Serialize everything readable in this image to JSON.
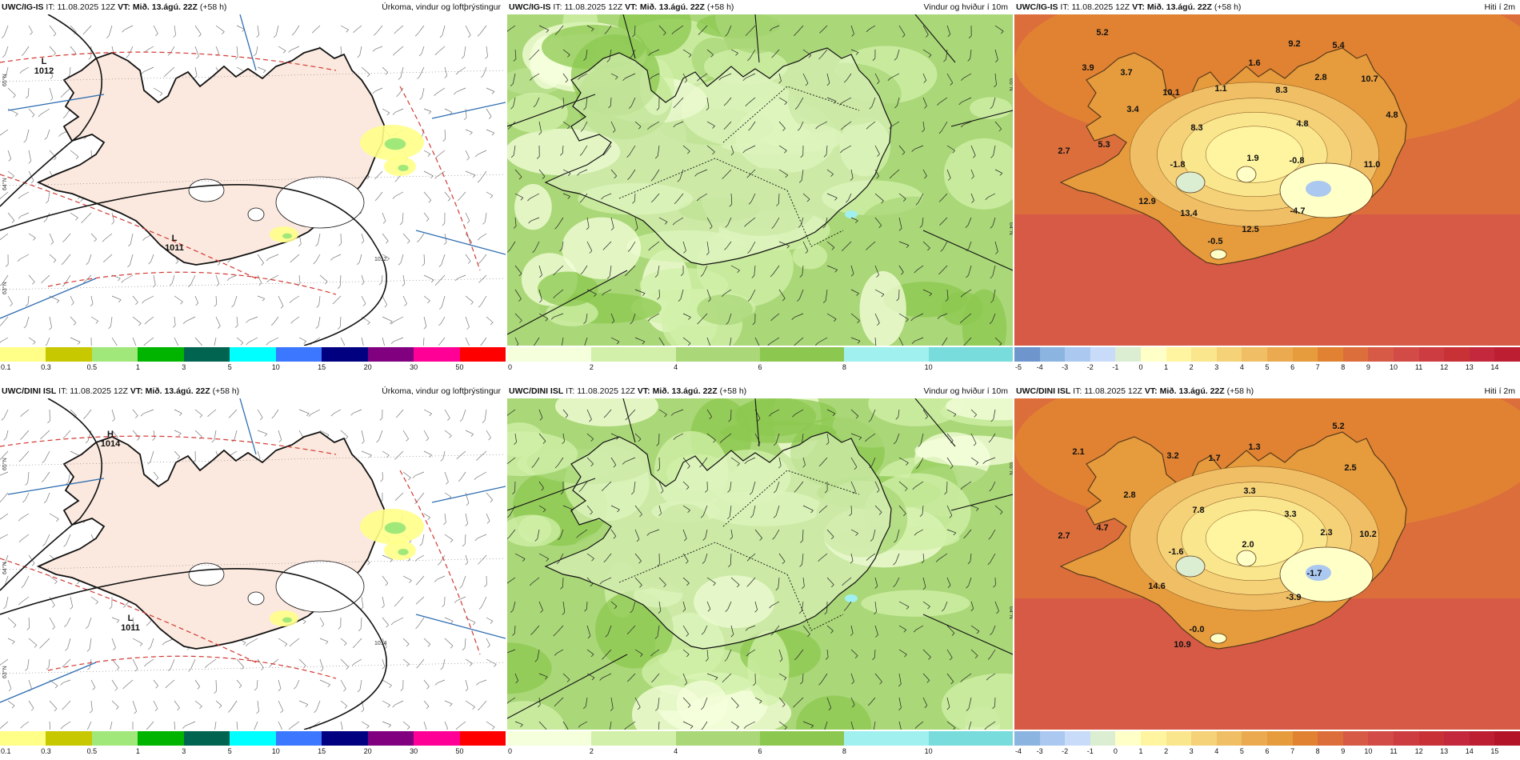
{
  "colors": {
    "land": "#fbe9df",
    "sea": "#ffffff",
    "coast": "#111111",
    "isobar": "#111111",
    "red_dash": "#d23a32",
    "meridian": "#2e6db0"
  },
  "panels": [
    {
      "id": "p1",
      "model": "UWC/IG-IS",
      "it_label": "IT:",
      "it": "11.08.2025 12Z",
      "vt_label": "VT:",
      "vt": "Mið. 13.ágú. 22Z",
      "lead": "(+58 h)",
      "title": "Úrkoma, vindur og loftþrýstingur",
      "type": "precip",
      "labels": [
        {
          "text": "L",
          "sub": "1012",
          "x": 55,
          "y": 62
        },
        {
          "text": "L",
          "sub": "1011",
          "x": 218,
          "y": 283
        }
      ],
      "isobar_labels": [
        "1012"
      ],
      "lat_labels": [
        "65°N",
        "64°N",
        "63°N"
      ]
    },
    {
      "id": "p2",
      "model": "UWC/IG-IS",
      "it_label": "IT:",
      "it": "11.08.2025 12Z",
      "vt_label": "VT:",
      "vt": "Mið. 13.ágú. 22Z",
      "lead": "(+58 h)",
      "title": "Vindur og hviður í 10m",
      "type": "wind",
      "lat_labels": [
        "65°N",
        "64°N"
      ]
    },
    {
      "id": "p3",
      "model": "UWC/IG-IS",
      "it_label": "IT:",
      "it": "11.08.2025 12Z",
      "vt_label": "VT:",
      "vt": "Mið. 13.ágú. 22Z",
      "lead": "(+58 h)",
      "title": "Hiti í 2m",
      "type": "temp",
      "labels": [
        {
          "text": "5.2",
          "x": 110,
          "y": 26
        },
        {
          "text": "9.2",
          "x": 350,
          "y": 40
        },
        {
          "text": "5.4",
          "x": 405,
          "y": 42
        },
        {
          "text": "3.9",
          "x": 92,
          "y": 70
        },
        {
          "text": "3.7",
          "x": 140,
          "y": 76
        },
        {
          "text": "1.6",
          "x": 300,
          "y": 64
        },
        {
          "text": "2.8",
          "x": 383,
          "y": 82
        },
        {
          "text": "10.7",
          "x": 444,
          "y": 84
        },
        {
          "text": "10.1",
          "x": 196,
          "y": 101
        },
        {
          "text": "1.1",
          "x": 258,
          "y": 96
        },
        {
          "text": "8.3",
          "x": 334,
          "y": 98
        },
        {
          "text": "3.4",
          "x": 148,
          "y": 122
        },
        {
          "text": "4.8",
          "x": 472,
          "y": 129
        },
        {
          "text": "4.8",
          "x": 360,
          "y": 140
        },
        {
          "text": "8.3",
          "x": 228,
          "y": 145
        },
        {
          "text": "5.3",
          "x": 112,
          "y": 166
        },
        {
          "text": "2.7",
          "x": 62,
          "y": 174
        },
        {
          "text": "-1.8",
          "x": 204,
          "y": 191
        },
        {
          "text": "1.9",
          "x": 298,
          "y": 183
        },
        {
          "text": "-0.8",
          "x": 353,
          "y": 186
        },
        {
          "text": "11.0",
          "x": 447,
          "y": 191
        },
        {
          "text": "12.9",
          "x": 166,
          "y": 237
        },
        {
          "text": "13.4",
          "x": 218,
          "y": 252
        },
        {
          "text": "-4.7",
          "x": 354,
          "y": 249
        },
        {
          "text": "12.5",
          "x": 295,
          "y": 272
        },
        {
          "text": "-0.5",
          "x": 251,
          "y": 287
        }
      ]
    },
    {
      "id": "p4",
      "model": "UWC/DINI ISL",
      "it_label": "IT:",
      "it": "11.08.2025 12Z",
      "vt_label": "VT:",
      "vt": "Mið. 13.ágú. 22Z",
      "lead": "(+58 h)",
      "title": "Úrkoma, vindur og loftþrýstingur",
      "type": "precip",
      "labels": [
        {
          "text": "H",
          "sub": "1014",
          "x": 138,
          "y": 48
        },
        {
          "text": "L",
          "sub": "1011",
          "x": 163,
          "y": 278
        }
      ],
      "isobar_labels": [
        "1014"
      ],
      "lat_labels": [
        "65°N",
        "64°N",
        "63°N"
      ]
    },
    {
      "id": "p5",
      "model": "UWC/DINI ISL",
      "it_label": "IT:",
      "it": "11.08.2025 12Z",
      "vt_label": "VT:",
      "vt": "Mið. 13.ágú. 22Z",
      "lead": "(+58 h)",
      "title": "Vindur og hviður í 10m",
      "type": "wind",
      "lat_labels": [
        "65°N",
        "64°N"
      ]
    },
    {
      "id": "p6",
      "model": "UWC/DINI ISL",
      "it_label": "IT:",
      "it": "11.08.2025 12Z",
      "vt_label": "VT:",
      "vt": "Mið. 13.ágú. 22Z",
      "lead": "(+58 h)",
      "title": "Hiti í 2m",
      "type": "temp",
      "labels": [
        {
          "text": "5.2",
          "x": 405,
          "y": 38
        },
        {
          "text": "2.1",
          "x": 80,
          "y": 70
        },
        {
          "text": "3.2",
          "x": 198,
          "y": 75
        },
        {
          "text": "1.7",
          "x": 250,
          "y": 78
        },
        {
          "text": "1.3",
          "x": 300,
          "y": 64
        },
        {
          "text": "2.5",
          "x": 420,
          "y": 90
        },
        {
          "text": "2.8",
          "x": 144,
          "y": 124
        },
        {
          "text": "3.3",
          "x": 294,
          "y": 119
        },
        {
          "text": "7.8",
          "x": 230,
          "y": 143
        },
        {
          "text": "3.3",
          "x": 345,
          "y": 148
        },
        {
          "text": "4.7",
          "x": 110,
          "y": 165
        },
        {
          "text": "2.7",
          "x": 62,
          "y": 175
        },
        {
          "text": "2.3",
          "x": 390,
          "y": 171
        },
        {
          "text": "10.2",
          "x": 442,
          "y": 173
        },
        {
          "text": "-1.6",
          "x": 202,
          "y": 195
        },
        {
          "text": "2.0",
          "x": 292,
          "y": 186
        },
        {
          "text": "-1.7",
          "x": 375,
          "y": 222
        },
        {
          "text": "14.6",
          "x": 178,
          "y": 238
        },
        {
          "text": "-3.9",
          "x": 349,
          "y": 252
        },
        {
          "text": "-0.0",
          "x": 228,
          "y": 292
        },
        {
          "text": "10.9",
          "x": 210,
          "y": 311
        }
      ]
    }
  ],
  "scales": {
    "precip": {
      "colors": [
        "#ffff88",
        "#c8c800",
        "#a0e87a",
        "#00b400",
        "#006450",
        "#00ffff",
        "#3c78ff",
        "#000080",
        "#800080",
        "#ff0096",
        "#ff0000"
      ],
      "ticks": [
        "0.1",
        "0.3",
        "0.5",
        "1",
        "3",
        "5",
        "10",
        "15",
        "20",
        "30",
        "50"
      ]
    },
    "wind": {
      "colors": [
        "#f5ffdc",
        "#d2f0aa",
        "#aad778",
        "#8cc850",
        "#a0f0f0",
        "#78dcdc"
      ],
      "ticks": [
        "0",
        "2",
        "4",
        "6",
        "8",
        "10"
      ]
    },
    "temp_top": {
      "colors": [
        "#6e96cd",
        "#8cb4e1",
        "#aac8f0",
        "#c8dcfa",
        "#dceed2",
        "#ffffc8",
        "#fff5a0",
        "#fae68c",
        "#f5d278",
        "#f0be64",
        "#ebaa50",
        "#e69b3c",
        "#e08232",
        "#dc6e3c",
        "#d75a46",
        "#d24b46",
        "#cd3c41",
        "#c83237",
        "#c3283c",
        "#be1e32"
      ],
      "ticks": [
        "-5",
        "-4",
        "-3",
        "-2",
        "-1",
        "0",
        "1",
        "2",
        "3",
        "4",
        "5",
        "6",
        "7",
        "8",
        "9",
        "10",
        "11",
        "12",
        "13",
        "14"
      ]
    },
    "temp_bottom": {
      "colors": [
        "#8cb4e1",
        "#aac8f0",
        "#c8dcfa",
        "#dceed2",
        "#ffffc8",
        "#fff5a0",
        "#fae68c",
        "#f5d278",
        "#f0be64",
        "#ebaa50",
        "#e69b3c",
        "#e08232",
        "#dc6e3c",
        "#d75a46",
        "#d24b46",
        "#cd3c41",
        "#c83237",
        "#c3283c",
        "#be1e32",
        "#b41428"
      ],
      "ticks": [
        "-4",
        "-3",
        "-2",
        "-1",
        "0",
        "1",
        "2",
        "3",
        "4",
        "5",
        "6",
        "7",
        "8",
        "9",
        "10",
        "11",
        "12",
        "13",
        "14",
        "15"
      ]
    }
  }
}
